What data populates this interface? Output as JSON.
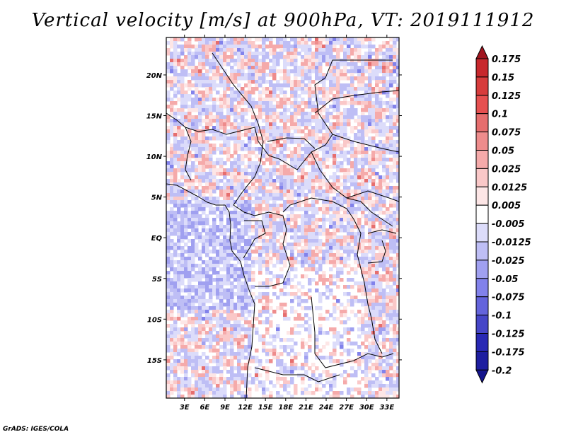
{
  "title": "Vertical velocity [m/s] at 900hPa, VT: 2019111912",
  "footer": "GrADS: IGES/COLA",
  "map": {
    "lat_labels": [
      "20N",
      "15N",
      "10N",
      "5N",
      "EQ",
      "5S",
      "10S",
      "15S"
    ],
    "lat_values": [
      20,
      15,
      10,
      5,
      0,
      -5,
      -10,
      -15
    ],
    "lon_labels": [
      "3E",
      "6E",
      "9E",
      "12E",
      "15E",
      "18E",
      "21E",
      "24E",
      "27E",
      "30E",
      "33E"
    ],
    "lon_values": [
      3,
      6,
      9,
      12,
      15,
      18,
      21,
      24,
      27,
      30,
      33
    ],
    "lat_range": [
      -19.7,
      24.6
    ],
    "lon_range": [
      0.3,
      34.8
    ]
  },
  "colorbar": {
    "labels": [
      "0.175",
      "0.15",
      "0.125",
      "0.1",
      "0.075",
      "0.05",
      "0.025",
      "0.0125",
      "0.005",
      "-0.005",
      "-0.0125",
      "-0.025",
      "-0.05",
      "-0.075",
      "-0.1",
      "-0.125",
      "-0.175",
      "-0.2"
    ],
    "colors": [
      "#a0141e",
      "#c8282d",
      "#d73c3c",
      "#e65050",
      "#e66e6e",
      "#ee8c8c",
      "#f5aaaa",
      "#fac8c8",
      "#fde6e6",
      "#ffffff",
      "#dcdcfa",
      "#bebef5",
      "#a0a0f0",
      "#8282eb",
      "#6464dc",
      "#4646c8",
      "#2828b4",
      "#1e1ea0",
      "#14148c"
    ]
  }
}
